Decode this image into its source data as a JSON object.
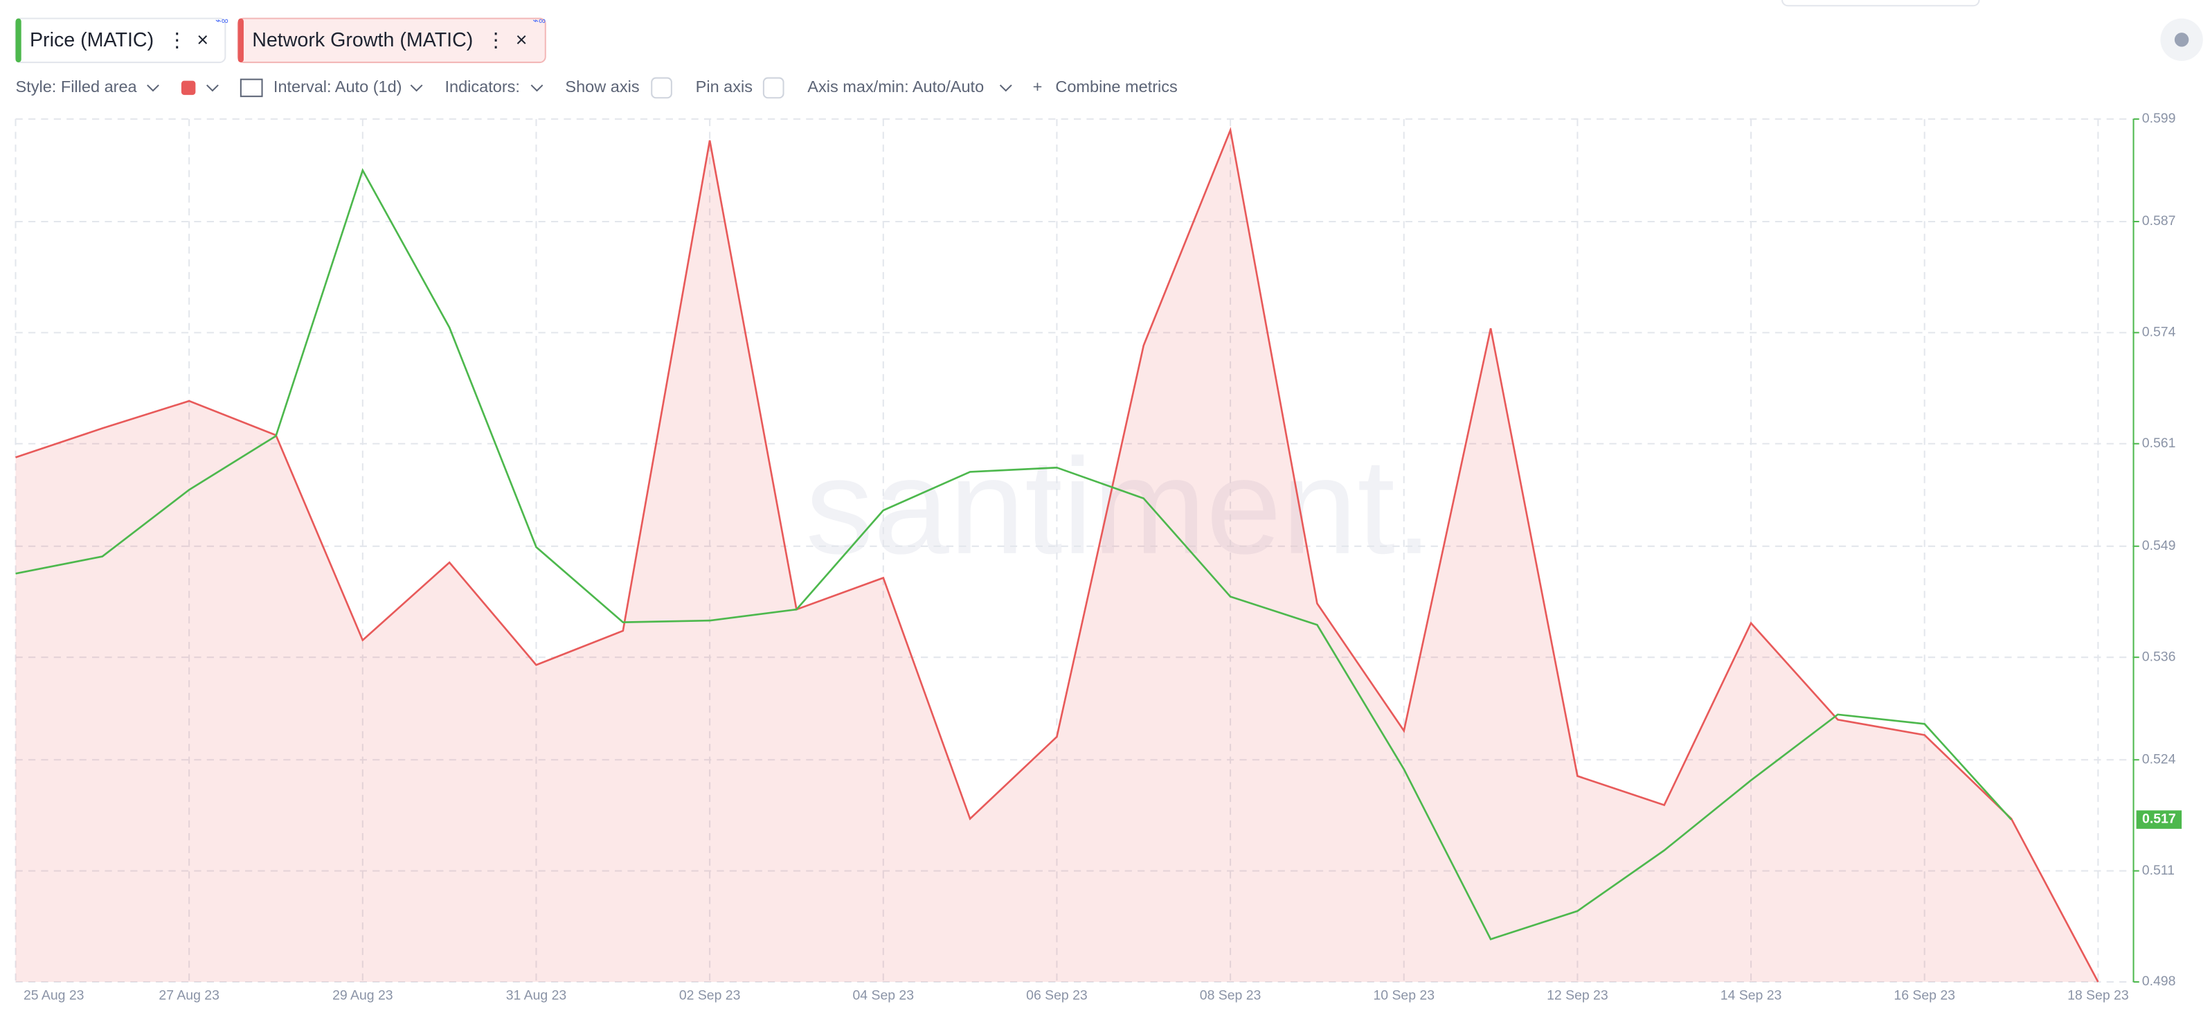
{
  "toolbar": {
    "style": "Style: Filled area",
    "interval": "Interval: Auto (1d)",
    "indicators": "Indicators:",
    "show_axis": "Show axis",
    "pin_axis": "Pin axis",
    "axis_minmax": "Axis max/min: Auto/Auto",
    "combine": "Combine metrics"
  },
  "chart_data": {
    "type": "line",
    "watermark": "santiment.",
    "categories": [
      "25 Aug 23",
      null,
      "27 Aug 23",
      null,
      "29 Aug 23",
      null,
      "31 Aug 23",
      null,
      "02 Sep 23",
      null,
      "04 Sep 23",
      null,
      "06 Sep 23",
      null,
      "08 Sep 23",
      null,
      "10 Sep 23",
      null,
      "12 Sep 23",
      null,
      "14 Sep 23",
      null,
      "16 Sep 23",
      null,
      "18 Sep 23"
    ],
    "series": [
      {
        "name": "Price (MATIC)",
        "color": "#4db84d",
        "axis": "y2",
        "values": [
          0.5458,
          0.5478,
          0.5556,
          0.5619,
          0.593,
          0.5746,
          0.5489,
          0.5401,
          0.5403,
          0.5416,
          0.5532,
          0.5577,
          0.5582,
          0.5546,
          0.5431,
          0.5398,
          0.5229,
          0.503,
          0.5063,
          0.5134,
          0.5216,
          0.5293,
          0.5282,
          0.517,
          null
        ]
      },
      {
        "name": "Network Growth (MATIC)",
        "color": "#e85a5a",
        "fill": true,
        "axis": "y2",
        "values": [
          0.5594,
          0.5628,
          0.566,
          0.562,
          0.538,
          0.5471,
          0.5351,
          0.5391,
          0.5965,
          0.5416,
          0.5453,
          0.5171,
          0.5267,
          0.5725,
          0.5977,
          0.5423,
          0.5274,
          0.5745,
          0.5221,
          0.5187,
          0.54,
          0.5287,
          0.5269,
          0.5171,
          0.498
        ]
      }
    ],
    "y2lim": [
      0.498,
      0.599
    ],
    "y2ticks": [
      0.599,
      0.587,
      0.574,
      0.561,
      0.549,
      0.536,
      0.524,
      0.511,
      0.498
    ],
    "grid": true
  }
}
